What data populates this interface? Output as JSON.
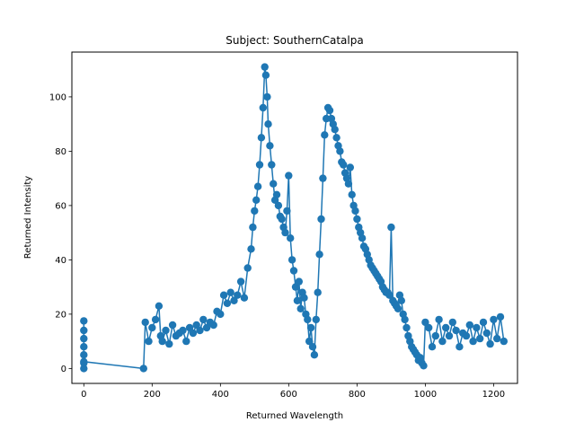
{
  "chart_data": {
    "type": "line",
    "title": "Subject: SouthernCatalpa",
    "xlabel": "Returned Wavelength",
    "ylabel": "Returned Intensity",
    "xlim": [
      -35,
      1270
    ],
    "ylim": [
      -5.5,
      116.5
    ],
    "x_ticks": [
      0,
      200,
      400,
      600,
      800,
      1000,
      1200
    ],
    "y_ticks": [
      0,
      20,
      40,
      60,
      80,
      100
    ],
    "grid": false,
    "legend": "none",
    "color": "#1f77b4",
    "marker": "circle",
    "series": [
      {
        "x": [
          0,
          0,
          0,
          0,
          0,
          0,
          0,
          0,
          175,
          180,
          190,
          200,
          210,
          220,
          225,
          230,
          240,
          250,
          260,
          270,
          280,
          290,
          300,
          310,
          320,
          330,
          340,
          350,
          360,
          370,
          380,
          390,
          400,
          410,
          420,
          430,
          440,
          450,
          460,
          470,
          480,
          490,
          495,
          500,
          505,
          510,
          515,
          520,
          525,
          530,
          533,
          537,
          540,
          545,
          550,
          555,
          560,
          565,
          570,
          575,
          580,
          585,
          590,
          595,
          600,
          605,
          610,
          615,
          620,
          625,
          630,
          635,
          640,
          645,
          650,
          655,
          660,
          665,
          670,
          675,
          680,
          685,
          690,
          695,
          700,
          705,
          710,
          715,
          720,
          725,
          730,
          735,
          740,
          745,
          750,
          755,
          760,
          765,
          770,
          775,
          780,
          785,
          790,
          795,
          800,
          805,
          810,
          815,
          820,
          825,
          830,
          835,
          840,
          845,
          850,
          855,
          860,
          865,
          870,
          875,
          880,
          885,
          890,
          895,
          900,
          905,
          910,
          915,
          920,
          925,
          930,
          935,
          940,
          945,
          950,
          955,
          960,
          965,
          970,
          975,
          980,
          985,
          990,
          995,
          1000,
          1010,
          1020,
          1030,
          1040,
          1050,
          1060,
          1070,
          1080,
          1090,
          1100,
          1110,
          1120,
          1130,
          1140,
          1150,
          1160,
          1170,
          1180,
          1190,
          1200,
          1210,
          1220,
          1230
        ],
        "y": [
          0,
          2,
          5,
          8,
          11,
          14,
          17.5,
          2.5,
          0,
          17,
          10,
          15,
          18,
          23,
          12,
          10,
          14,
          9,
          16,
          12,
          13,
          14,
          10,
          15,
          13,
          16,
          14,
          18,
          15,
          17,
          16,
          21,
          20,
          27,
          24,
          28,
          25,
          27,
          32,
          26,
          37,
          44,
          52,
          58,
          62,
          67,
          75,
          85,
          96,
          111,
          108,
          100,
          90,
          82,
          75,
          68,
          62,
          64,
          60,
          56,
          55,
          52,
          50,
          58,
          71,
          48,
          40,
          36,
          30,
          25,
          32,
          22,
          28,
          26,
          20,
          18,
          10,
          15,
          8,
          5,
          18,
          28,
          42,
          55,
          70,
          86,
          92,
          96,
          95,
          92,
          90,
          88,
          85,
          82,
          80,
          76,
          75,
          72,
          70,
          68,
          74,
          64,
          60,
          58,
          55,
          52,
          50,
          48,
          45,
          44,
          42,
          40,
          38,
          37,
          36,
          35,
          34,
          33,
          32,
          30,
          29,
          28,
          28,
          27,
          52,
          25,
          24,
          23,
          22,
          27,
          25,
          20,
          18,
          15,
          12,
          10,
          8,
          7,
          6,
          5,
          3,
          4,
          2,
          1,
          17,
          15,
          8,
          12,
          18,
          10,
          15,
          12,
          17,
          14,
          8,
          13,
          12,
          16,
          10,
          15,
          11,
          17,
          13,
          9,
          18,
          11,
          19,
          10
        ]
      }
    ]
  }
}
